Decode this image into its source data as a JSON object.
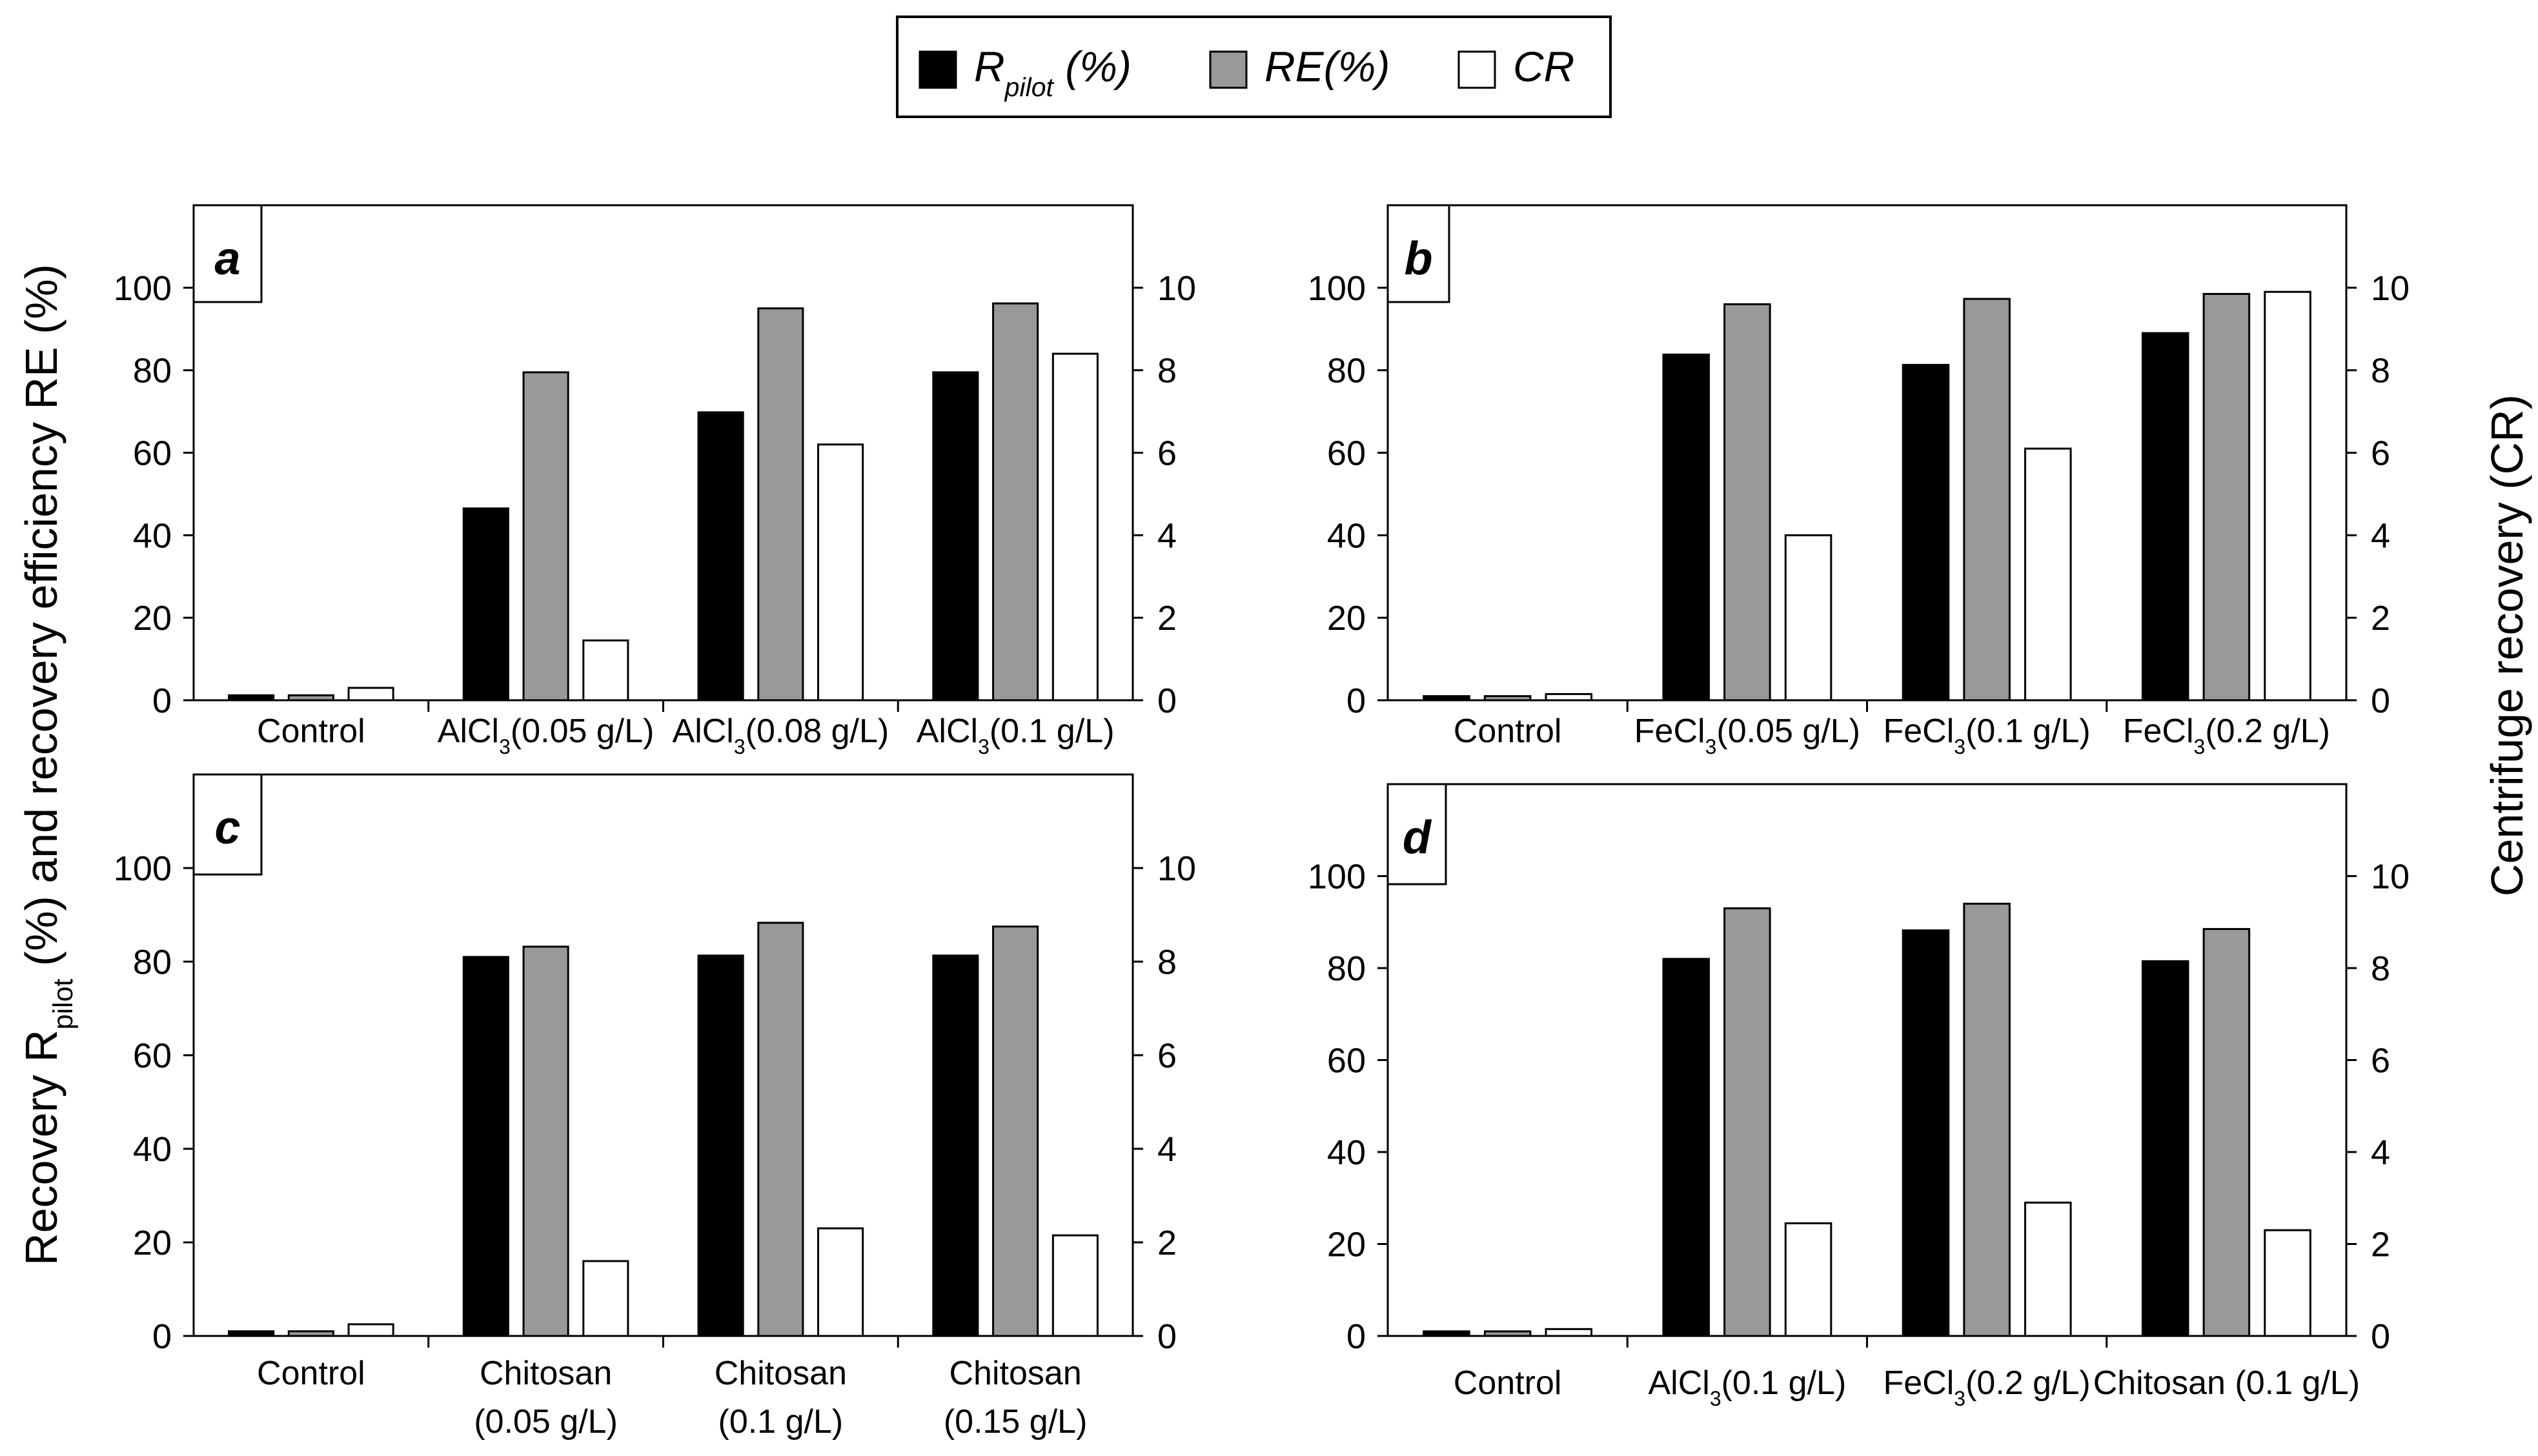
{
  "colors": {
    "rpilot": "#000000",
    "re": "#999999",
    "cr": "#ffffff",
    "stroke": "#000000"
  },
  "legend": [
    {
      "key": "rpilot",
      "main": "R",
      "sub": "pilot",
      "tail": " (%)"
    },
    {
      "key": "re",
      "main": "RE(%)",
      "sub": "",
      "tail": ""
    },
    {
      "key": "cr",
      "main": "CR",
      "sub": "",
      "tail": ""
    }
  ],
  "axis_labels": {
    "left": {
      "pre": "Recovery R",
      "sub": "pilot",
      "post": " (%) and recovery efficiency RE (%)"
    },
    "right": "Centrifuge recovery (CR)"
  },
  "chart_data": [
    {
      "panel": "a",
      "type": "bar",
      "ylim": [
        0,
        120
      ],
      "yticks": [
        0,
        20,
        40,
        60,
        80,
        100
      ],
      "y2lim": [
        0,
        12
      ],
      "y2ticks": [
        0,
        2,
        4,
        6,
        8,
        10
      ],
      "categories": [
        {
          "lines": [
            {
              "pre": "Control",
              "sub": "",
              "post": ""
            }
          ]
        },
        {
          "lines": [
            {
              "pre": "AlCl",
              "sub": "3",
              "post": "(0.05 g/L)"
            }
          ]
        },
        {
          "lines": [
            {
              "pre": "AlCl",
              "sub": "3",
              "post": "(0.08 g/L)"
            }
          ]
        },
        {
          "lines": [
            {
              "pre": "AlCl",
              "sub": "3",
              "post": "(0.1 g/L)"
            }
          ]
        }
      ],
      "series": [
        {
          "name": "Rpilot (%)",
          "key": "rpilot",
          "axis": "left",
          "values": [
            1.2,
            46.5,
            69.8,
            79.5
          ]
        },
        {
          "name": "RE(%)",
          "key": "re",
          "axis": "left",
          "values": [
            1.2,
            79.5,
            95.0,
            96.2
          ]
        },
        {
          "name": "CR",
          "key": "cr",
          "axis": "right",
          "values": [
            0.3,
            1.45,
            6.2,
            8.4
          ]
        }
      ]
    },
    {
      "panel": "b",
      "type": "bar",
      "ylim": [
        0,
        120
      ],
      "yticks": [
        0,
        20,
        40,
        60,
        80,
        100
      ],
      "y2lim": [
        0,
        12
      ],
      "y2ticks": [
        0,
        2,
        4,
        6,
        8,
        10
      ],
      "categories": [
        {
          "lines": [
            {
              "pre": "Control",
              "sub": "",
              "post": ""
            }
          ]
        },
        {
          "lines": [
            {
              "pre": "FeCl",
              "sub": "3",
              "post": "(0.05 g/L)"
            }
          ]
        },
        {
          "lines": [
            {
              "pre": "FeCl",
              "sub": "3",
              "post": "(0.1 g/L)"
            }
          ]
        },
        {
          "lines": [
            {
              "pre": "FeCl",
              "sub": "3",
              "post": "(0.2 g/L)"
            }
          ]
        }
      ],
      "series": [
        {
          "name": "Rpilot (%)",
          "key": "rpilot",
          "axis": "left",
          "values": [
            1.0,
            83.8,
            81.3,
            89.0
          ]
        },
        {
          "name": "RE(%)",
          "key": "re",
          "axis": "left",
          "values": [
            1.0,
            96.0,
            97.3,
            98.5
          ]
        },
        {
          "name": "CR",
          "key": "cr",
          "axis": "right",
          "values": [
            0.15,
            4.0,
            6.1,
            9.9
          ]
        }
      ]
    },
    {
      "panel": "c",
      "type": "bar",
      "ylim": [
        0,
        120
      ],
      "yticks": [
        0,
        20,
        40,
        60,
        80,
        100
      ],
      "y2lim": [
        0,
        12
      ],
      "y2ticks": [
        0,
        2,
        4,
        6,
        8,
        10
      ],
      "categories": [
        {
          "lines": [
            {
              "pre": "Control",
              "sub": "",
              "post": ""
            }
          ]
        },
        {
          "lines": [
            {
              "pre": "Chitosan",
              "sub": "",
              "post": ""
            },
            {
              "pre": "(0.05 g/L)",
              "sub": "",
              "post": ""
            }
          ]
        },
        {
          "lines": [
            {
              "pre": "Chitosan",
              "sub": "",
              "post": ""
            },
            {
              "pre": "(0.1 g/L)",
              "sub": "",
              "post": ""
            }
          ]
        },
        {
          "lines": [
            {
              "pre": "Chitosan",
              "sub": "",
              "post": ""
            },
            {
              "pre": "(0.15 g/L)",
              "sub": "",
              "post": ""
            }
          ]
        }
      ],
      "series": [
        {
          "name": "Rpilot (%)",
          "key": "rpilot",
          "axis": "left",
          "values": [
            1.0,
            81.0,
            81.3,
            81.3
          ]
        },
        {
          "name": "RE(%)",
          "key": "re",
          "axis": "left",
          "values": [
            1.0,
            83.2,
            88.3,
            87.5
          ]
        },
        {
          "name": "CR",
          "key": "cr",
          "axis": "right",
          "values": [
            0.25,
            1.6,
            2.3,
            2.15
          ]
        }
      ]
    },
    {
      "panel": "d",
      "type": "bar",
      "ylim": [
        0,
        120
      ],
      "yticks": [
        0,
        20,
        40,
        60,
        80,
        100
      ],
      "y2lim": [
        0,
        12
      ],
      "y2ticks": [
        0,
        2,
        4,
        6,
        8,
        10
      ],
      "categories": [
        {
          "lines": [
            {
              "pre": "Control",
              "sub": "",
              "post": ""
            }
          ]
        },
        {
          "lines": [
            {
              "pre": "AlCl",
              "sub": "3",
              "post": "(0.1 g/L)"
            }
          ]
        },
        {
          "lines": [
            {
              "pre": "FeCl",
              "sub": "3",
              "post": "(0.2 g/L)"
            }
          ]
        },
        {
          "lines": [
            {
              "pre": "Chitosan (0.1 g/L)",
              "sub": "",
              "post": ""
            }
          ]
        }
      ],
      "series": [
        {
          "name": "Rpilot (%)",
          "key": "rpilot",
          "axis": "left",
          "values": [
            1.0,
            82.0,
            88.2,
            81.5
          ]
        },
        {
          "name": "RE(%)",
          "key": "re",
          "axis": "left",
          "values": [
            1.0,
            93.0,
            94.0,
            88.5
          ]
        },
        {
          "name": "CR",
          "key": "cr",
          "axis": "right",
          "values": [
            0.15,
            2.45,
            2.9,
            2.3
          ]
        }
      ]
    }
  ]
}
